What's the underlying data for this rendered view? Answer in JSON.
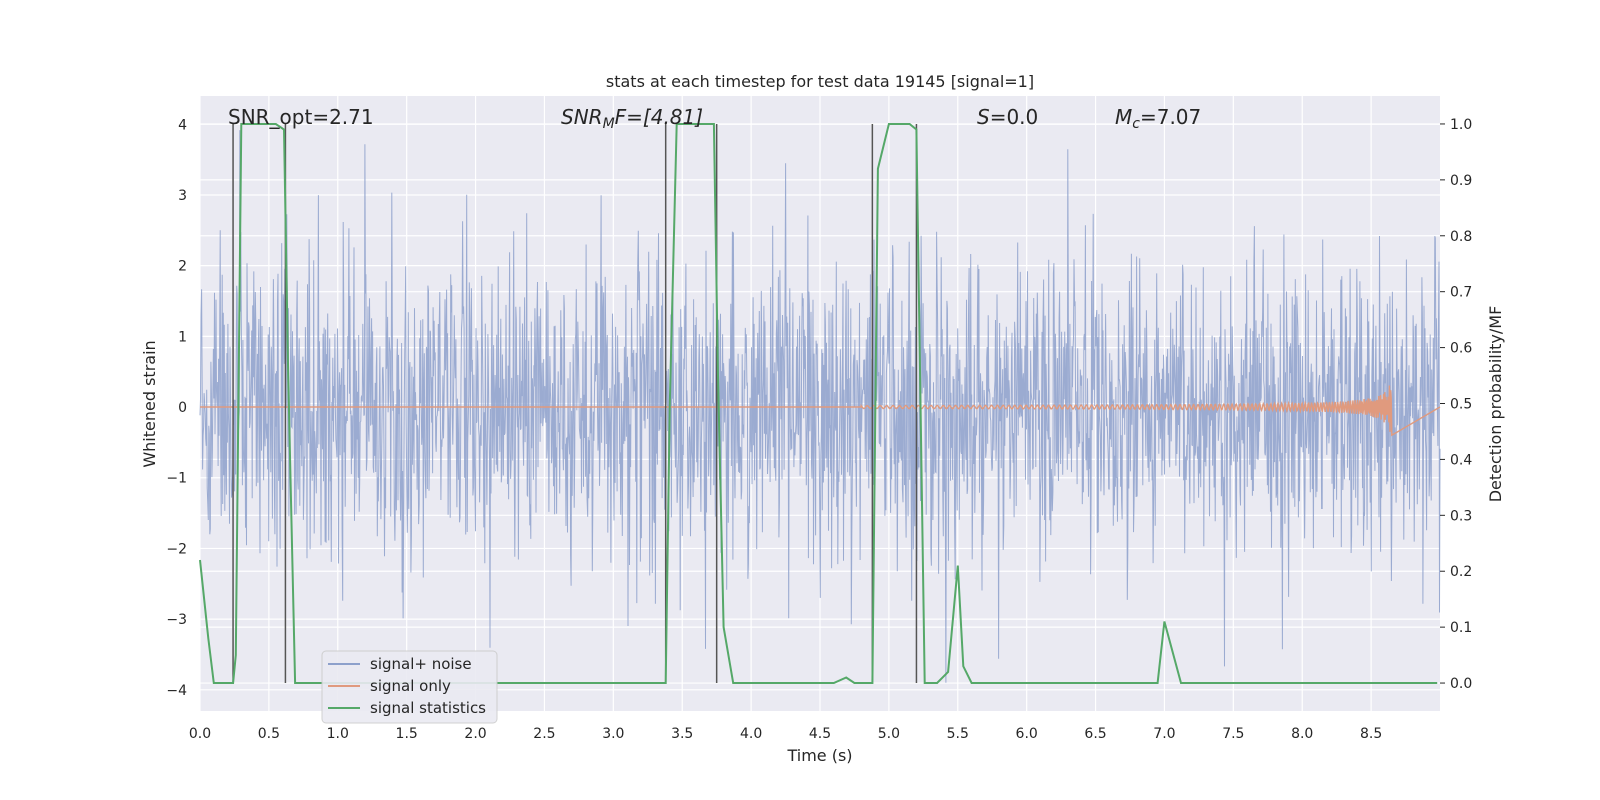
{
  "chart_data": {
    "type": "line",
    "title": "stats at each timestep for test data 19145 [signal=1]",
    "xlabel": "Time (s)",
    "ylabel_left": "Whitened strain",
    "ylabel_right": "Detection probability/MF",
    "xlim": [
      0.0,
      9.0
    ],
    "ylim_left": [
      -4.3,
      4.4
    ],
    "ylim_right": [
      -0.05,
      1.05
    ],
    "x_ticks": [
      0.0,
      0.5,
      1.0,
      1.5,
      2.0,
      2.5,
      3.0,
      3.5,
      4.0,
      4.5,
      5.0,
      5.5,
      6.0,
      6.5,
      7.0,
      7.5,
      8.0,
      8.5
    ],
    "x_tick_labels": [
      "0.0",
      "0.5",
      "1.0",
      "1.5",
      "2.0",
      "2.5",
      "3.0",
      "3.5",
      "4.0",
      "4.5",
      "5.0",
      "5.5",
      "6.0",
      "6.5",
      "7.0",
      "7.5",
      "8.0",
      "8.5"
    ],
    "y_ticks_left": [
      -4,
      -3,
      -2,
      -1,
      0,
      1,
      2,
      3,
      4
    ],
    "y_tick_labels_left": [
      "−4",
      "−3",
      "−2",
      "−1",
      "0",
      "1",
      "2",
      "3",
      "4"
    ],
    "y_ticks_right": [
      0.0,
      0.1,
      0.2,
      0.3,
      0.4,
      0.5,
      0.6,
      0.7,
      0.8,
      0.9,
      1.0
    ],
    "y_tick_labels_right": [
      "0.0",
      "0.1",
      "0.2",
      "0.3",
      "0.4",
      "0.5",
      "0.6",
      "0.7",
      "0.8",
      "0.9",
      "1.0"
    ],
    "grid": true,
    "legend_position": "lower-left",
    "annotations": {
      "snr_opt": "SNR_opt=2.71",
      "snr_mf_prefix": "SNR",
      "snr_mf_sub": "M",
      "snr_mf_suffix": "F=[4.81]",
      "s_var": "S",
      "s_val": "=0.0",
      "mc_var": "M",
      "mc_sub": "c",
      "mc_val": "=7.07"
    },
    "series": [
      {
        "name": "signal+ noise",
        "color": "#8da0cb",
        "description_axis": "left",
        "amplitude_envelope": {
          "typical_abs": 1.6,
          "max": 4.0,
          "min": -3.9
        }
      },
      {
        "name": "signal only",
        "color": "#e09a7e",
        "description_axis": "left",
        "chirp": {
          "start": 4.8,
          "end": 8.65,
          "peak_amplitude": 0.4
        }
      },
      {
        "name": "signal statistics",
        "color": "#55a868",
        "axis": "right",
        "x": [
          0.0,
          0.06,
          0.1,
          0.24,
          0.26,
          0.3,
          0.55,
          0.61,
          0.64,
          0.69,
          3.38,
          3.41,
          3.46,
          3.7,
          3.73,
          3.76,
          3.8,
          3.87,
          4.6,
          4.69,
          4.75,
          4.88,
          4.92,
          5.0,
          5.15,
          5.2,
          5.26,
          5.35,
          5.43,
          5.5,
          5.54,
          5.6,
          6.0,
          6.95,
          7.0,
          7.12,
          8.98
        ],
        "y": [
          0.22,
          0.08,
          0.0,
          0.0,
          0.05,
          1.0,
          1.0,
          0.99,
          0.55,
          0.0,
          0.0,
          0.5,
          1.0,
          1.0,
          1.0,
          0.55,
          0.1,
          0.0,
          0.0,
          0.01,
          0.0,
          0.0,
          0.92,
          1.0,
          1.0,
          0.99,
          0.0,
          0.0,
          0.02,
          0.21,
          0.03,
          0.0,
          0.0,
          0.0,
          0.11,
          0.0,
          0.0
        ]
      }
    ],
    "vertical_markers": {
      "color": "#555555",
      "x": [
        0.24,
        0.62,
        3.38,
        3.75,
        4.88,
        5.2
      ]
    }
  }
}
